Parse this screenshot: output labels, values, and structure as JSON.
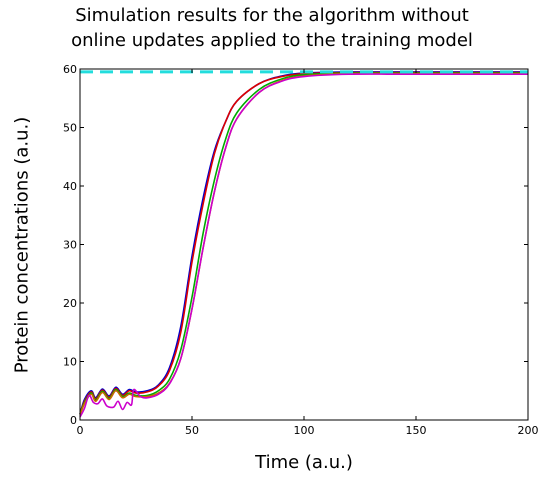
{
  "chart_data": {
    "type": "line",
    "title_lines": [
      "Simulation results for the algorithm without",
      "online updates applied to the training model"
    ],
    "xlabel": "Time (a.u.)",
    "ylabel": "Protein concentrations (a.u.)",
    "xlim": [
      0,
      200
    ],
    "ylim": [
      0,
      60
    ],
    "xticks": [
      0,
      50,
      100,
      150,
      200
    ],
    "yticks": [
      0,
      10,
      20,
      30,
      40,
      50,
      60
    ],
    "grid": false,
    "target_line": {
      "y": 59.5,
      "color": "#22dddd",
      "style": "dashed"
    },
    "series": [
      {
        "color": "#0000cc",
        "points": [
          [
            0,
            1
          ],
          [
            2,
            3.5
          ],
          [
            5,
            5
          ],
          [
            7,
            3.8
          ],
          [
            10,
            5.3
          ],
          [
            13,
            4.1
          ],
          [
            16,
            5.6
          ],
          [
            19,
            4.4
          ],
          [
            22,
            5.2
          ],
          [
            25,
            4.8
          ],
          [
            30,
            5
          ],
          [
            35,
            6
          ],
          [
            40,
            9
          ],
          [
            45,
            16
          ],
          [
            50,
            28
          ],
          [
            55,
            38
          ],
          [
            60,
            46
          ],
          [
            65,
            51
          ],
          [
            70,
            54.5
          ],
          [
            80,
            57.5
          ],
          [
            90,
            58.8
          ],
          [
            100,
            59.3
          ],
          [
            120,
            59.5
          ],
          [
            150,
            59.5
          ],
          [
            200,
            59.5
          ]
        ]
      },
      {
        "color": "#dd0000",
        "points": [
          [
            0,
            1
          ],
          [
            2,
            3.2
          ],
          [
            5,
            4.8
          ],
          [
            7,
            3.6
          ],
          [
            10,
            5.1
          ],
          [
            13,
            3.9
          ],
          [
            16,
            5.4
          ],
          [
            19,
            4.2
          ],
          [
            22,
            5
          ],
          [
            25,
            4.6
          ],
          [
            30,
            4.8
          ],
          [
            35,
            5.8
          ],
          [
            40,
            8.5
          ],
          [
            45,
            15
          ],
          [
            50,
            27
          ],
          [
            55,
            37
          ],
          [
            60,
            45.5
          ],
          [
            65,
            51
          ],
          [
            70,
            54.5
          ],
          [
            80,
            57.5
          ],
          [
            90,
            58.7
          ],
          [
            100,
            59.2
          ],
          [
            120,
            59.4
          ],
          [
            150,
            59.4
          ],
          [
            200,
            59.4
          ]
        ]
      },
      {
        "color": "#00aa00",
        "points": [
          [
            0,
            1
          ],
          [
            2,
            3
          ],
          [
            5,
            4.6
          ],
          [
            7,
            3.4
          ],
          [
            10,
            4.9
          ],
          [
            13,
            3.7
          ],
          [
            16,
            5.2
          ],
          [
            19,
            4
          ],
          [
            22,
            4.6
          ],
          [
            25,
            4.2
          ],
          [
            30,
            4.2
          ],
          [
            35,
            5
          ],
          [
            40,
            7
          ],
          [
            45,
            12
          ],
          [
            50,
            21
          ],
          [
            55,
            32
          ],
          [
            60,
            41
          ],
          [
            65,
            48
          ],
          [
            70,
            52.5
          ],
          [
            80,
            56.5
          ],
          [
            90,
            58.3
          ],
          [
            100,
            59
          ],
          [
            120,
            59.3
          ],
          [
            150,
            59.3
          ],
          [
            200,
            59.3
          ]
        ]
      },
      {
        "color": "#cc6600",
        "points": [
          [
            0,
            0.8
          ],
          [
            2,
            2.8
          ],
          [
            5,
            4.4
          ],
          [
            7,
            3.2
          ],
          [
            10,
            4.7
          ],
          [
            13,
            3.5
          ],
          [
            16,
            5
          ],
          [
            19,
            3.8
          ],
          [
            22,
            4.4
          ],
          [
            25,
            4
          ],
          [
            30,
            4
          ],
          [
            35,
            4.6
          ],
          [
            40,
            6.3
          ],
          [
            45,
            10.5
          ],
          [
            50,
            19
          ],
          [
            55,
            29.5
          ],
          [
            60,
            39
          ],
          [
            65,
            46.5
          ],
          [
            70,
            51.5
          ],
          [
            80,
            56
          ],
          [
            90,
            58
          ],
          [
            100,
            58.8
          ],
          [
            120,
            59.2
          ],
          [
            150,
            59.2
          ],
          [
            200,
            59.2
          ]
        ]
      },
      {
        "color": "#cc00cc",
        "points": [
          [
            0,
            0.5
          ],
          [
            2,
            2
          ],
          [
            4,
            4.2
          ],
          [
            6,
            3
          ],
          [
            8,
            2.8
          ],
          [
            10,
            3.6
          ],
          [
            12,
            2.4
          ],
          [
            15,
            2.2
          ],
          [
            17,
            3.2
          ],
          [
            19,
            1.8
          ],
          [
            21,
            3
          ],
          [
            23,
            2.6
          ],
          [
            24,
            5.2
          ],
          [
            27,
            4
          ],
          [
            30,
            3.8
          ],
          [
            35,
            4.4
          ],
          [
            40,
            6.2
          ],
          [
            45,
            10.5
          ],
          [
            50,
            19
          ],
          [
            55,
            29.5
          ],
          [
            60,
            39
          ],
          [
            65,
            46.5
          ],
          [
            70,
            51.5
          ],
          [
            80,
            56
          ],
          [
            90,
            57.9
          ],
          [
            100,
            58.7
          ],
          [
            120,
            59.1
          ],
          [
            150,
            59.1
          ],
          [
            200,
            59.1
          ]
        ]
      }
    ]
  }
}
